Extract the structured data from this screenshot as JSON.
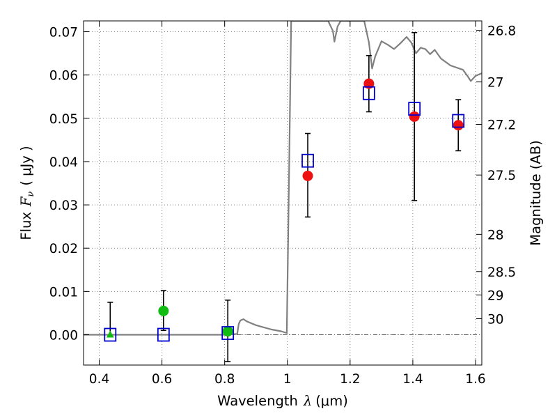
{
  "chart_data": {
    "type": "scatter",
    "xlabel": "Wavelength",
    "xlabel_math": "λ",
    "xlabel_unit": "(μm)",
    "ylabel": "Flux",
    "ylabel_math": "F",
    "ylabel_math_sub": "ν",
    "ylabel_unit": "( μJy )",
    "y2label": "Magnitude (AB)",
    "xlim": [
      0.35,
      1.62
    ],
    "ylim": [
      -0.007,
      0.0725
    ],
    "grid": true,
    "x_ticks": [
      0.4,
      0.6,
      0.8,
      1.0,
      1.2,
      1.4,
      1.6
    ],
    "x_tick_labels": [
      "0.4",
      "0.6",
      "0.8",
      "1",
      "1.2",
      "1.4",
      "1.6"
    ],
    "y_ticks": [
      0.0,
      0.01,
      0.02,
      0.03,
      0.04,
      0.05,
      0.06,
      0.07
    ],
    "y_tick_labels": [
      "0.00",
      "0.01",
      "0.02",
      "0.03",
      "0.04",
      "0.05",
      "0.06",
      "0.07"
    ],
    "y2_ticks": [
      {
        "label": "26.8",
        "flux": 0.0703
      },
      {
        "label": "27",
        "flux": 0.0584
      },
      {
        "label": "27.2",
        "flux": 0.0486
      },
      {
        "label": "27.5",
        "flux": 0.0369
      },
      {
        "label": "28",
        "flux": 0.0232
      },
      {
        "label": "28.5",
        "flux": 0.0146
      },
      {
        "label": "29",
        "flux": 0.0092
      },
      {
        "label": "30",
        "flux": 0.0037
      }
    ],
    "zero_line": 0.0,
    "colors": {
      "template": "#808080",
      "model": "#0000cc",
      "detection": "#ee1111",
      "optical": "#11bb11",
      "errorbar": "#000000",
      "grid": "#7f7f7f"
    },
    "template_spectrum": [
      [
        0.35,
        0.0
      ],
      [
        0.5,
        0.0
      ],
      [
        0.6,
        0.0
      ],
      [
        0.7,
        0.0
      ],
      [
        0.8,
        0.0
      ],
      [
        0.84,
        0.0002
      ],
      [
        0.845,
        0.0025
      ],
      [
        0.85,
        0.0033
      ],
      [
        0.86,
        0.0036
      ],
      [
        0.87,
        0.0031
      ],
      [
        0.88,
        0.0028
      ],
      [
        0.9,
        0.0022
      ],
      [
        0.92,
        0.0018
      ],
      [
        0.95,
        0.0012
      ],
      [
        0.98,
        0.0008
      ],
      [
        0.998,
        0.0004
      ],
      [
        1.005,
        0.035
      ],
      [
        1.012,
        0.0725
      ],
      [
        1.13,
        0.0725
      ],
      [
        1.145,
        0.0702
      ],
      [
        1.15,
        0.0677
      ],
      [
        1.16,
        0.0712
      ],
      [
        1.17,
        0.0725
      ],
      [
        1.245,
        0.0725
      ],
      [
        1.26,
        0.0675
      ],
      [
        1.27,
        0.0615
      ],
      [
        1.28,
        0.0643
      ],
      [
        1.3,
        0.0678
      ],
      [
        1.32,
        0.067
      ],
      [
        1.34,
        0.066
      ],
      [
        1.36,
        0.0673
      ],
      [
        1.38,
        0.0688
      ],
      [
        1.395,
        0.0675
      ],
      [
        1.41,
        0.065
      ],
      [
        1.425,
        0.0663
      ],
      [
        1.44,
        0.066
      ],
      [
        1.455,
        0.0648
      ],
      [
        1.47,
        0.0658
      ],
      [
        1.49,
        0.0638
      ],
      [
        1.52,
        0.0622
      ],
      [
        1.56,
        0.0612
      ],
      [
        1.575,
        0.0597
      ],
      [
        1.585,
        0.0586
      ],
      [
        1.6,
        0.0598
      ],
      [
        1.62,
        0.0604
      ]
    ],
    "model_points": [
      {
        "x": 0.435,
        "y": 0.0
      },
      {
        "x": 0.605,
        "y": 0.0
      },
      {
        "x": 0.81,
        "y": 0.0004
      },
      {
        "x": 1.065,
        "y": 0.0402
      },
      {
        "x": 1.26,
        "y": 0.0558
      },
      {
        "x": 1.405,
        "y": 0.0522
      },
      {
        "x": 1.545,
        "y": 0.0494
      }
    ],
    "detections": [
      {
        "x": 1.065,
        "y": 0.0367,
        "yerr_low": 0.0272,
        "yerr_high": 0.0465
      },
      {
        "x": 1.26,
        "y": 0.058,
        "yerr_low": 0.0515,
        "yerr_high": 0.0645
      },
      {
        "x": 1.405,
        "y": 0.0504,
        "yerr_low": 0.031,
        "yerr_high": 0.0698
      },
      {
        "x": 1.545,
        "y": 0.0484,
        "yerr_low": 0.0425,
        "yerr_high": 0.0543
      }
    ],
    "optical_points": [
      {
        "x": 0.605,
        "y": 0.0055,
        "yerr_low": 0.001,
        "yerr_high": 0.0102
      },
      {
        "x": 0.81,
        "y": 0.0008,
        "yerr_low": -0.0062,
        "yerr_high": 0.008
      }
    ],
    "optical_limits": [
      {
        "x": 0.435,
        "y": 0.0,
        "yerr_low": -0.0005,
        "yerr_high": 0.0075
      }
    ]
  }
}
